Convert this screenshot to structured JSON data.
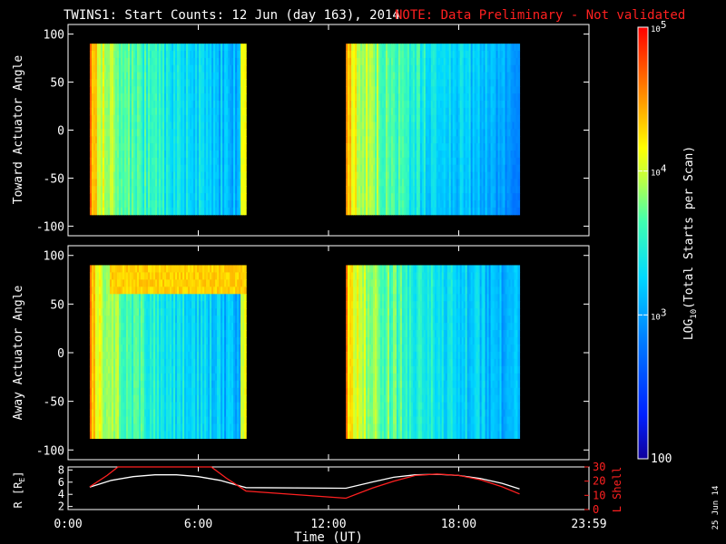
{
  "header": {
    "title": "TWINS1: Start Counts: 12 Jun (day 163), 2014",
    "note": "NOTE: Data Preliminary - Not validated"
  },
  "date_stamp": "25 Jun 14",
  "colors": {
    "note": "#ff2020",
    "r_line": "#ffffff",
    "lshell_line": "#ff2020",
    "frame": "#ffffff"
  },
  "chart_data": [
    {
      "type": "heatmap",
      "panel": "toward",
      "ylabel": "Toward Actuator Angle",
      "ylim": [
        -110,
        110
      ],
      "yticks": [
        100,
        50,
        0,
        -50,
        -100
      ],
      "xlim": [
        0,
        24
      ],
      "data_range": {
        "angle": [
          -88,
          90
        ]
      },
      "segments": [
        {
          "start": 1.0,
          "end": 8.2
        },
        {
          "start": 12.8,
          "end": 20.8
        }
      ]
    },
    {
      "type": "heatmap",
      "panel": "away",
      "ylabel": "Away Actuator Angle",
      "ylim": [
        -110,
        110
      ],
      "yticks": [
        100,
        50,
        0,
        -50,
        -100
      ],
      "xlim": [
        0,
        24
      ],
      "data_range": {
        "angle": [
          -88,
          90
        ]
      },
      "segments": [
        {
          "start": 1.0,
          "end": 8.2
        },
        {
          "start": 12.8,
          "end": 20.8
        }
      ]
    },
    {
      "type": "line",
      "panel": "orbit",
      "xlabel": "Time (UT)",
      "xlim": [
        0,
        24
      ],
      "xticks": [
        0,
        6,
        12,
        18,
        24
      ],
      "xtick_labels": [
        "0:00",
        "6:00",
        "12:00",
        "18:00",
        "23:59"
      ],
      "y_left": {
        "label": "R [R",
        "label_sub": "E",
        "label_end": "]",
        "lim": [
          1.5,
          8.5
        ],
        "ticks": [
          2,
          4,
          6,
          8
        ]
      },
      "y_right": {
        "label": "L Shell",
        "lim": [
          0,
          30
        ],
        "ticks": [
          0,
          10,
          20,
          30
        ]
      },
      "series": [
        {
          "axis": "left",
          "x": [
            1.0,
            2.0,
            3.0,
            4.0,
            5.0,
            6.0,
            7.0,
            8.0,
            8.2,
            12.8,
            14.0,
            15.0,
            16.0,
            17.0,
            18.0,
            19.0,
            20.0,
            20.8
          ],
          "y": [
            5.2,
            6.3,
            6.9,
            7.2,
            7.2,
            6.9,
            6.3,
            5.3,
            5.1,
            5.0,
            6.0,
            6.8,
            7.2,
            7.3,
            7.1,
            6.6,
            5.8,
            4.9
          ]
        },
        {
          "axis": "right",
          "x": [
            1.0,
            1.8,
            2.3,
            6.6,
            7.3,
            8.2,
            12.8,
            14.0,
            15.0,
            16.0,
            17.0,
            18.0,
            19.0,
            20.0,
            20.8
          ],
          "y": [
            16,
            24,
            30,
            30,
            22,
            13,
            8,
            15,
            20,
            24,
            25,
            24,
            21,
            16,
            11
          ]
        }
      ]
    }
  ],
  "colorbar": {
    "label_pre": "LOG",
    "label_sub": "10",
    "label_post": "(Total Starts per Scan)",
    "scale": "log",
    "range": [
      100,
      100000
    ],
    "tick_bases": [
      "10",
      "10",
      "10"
    ],
    "tick_exps": [
      "5",
      "4",
      "3"
    ],
    "tick_bottom": "100"
  }
}
